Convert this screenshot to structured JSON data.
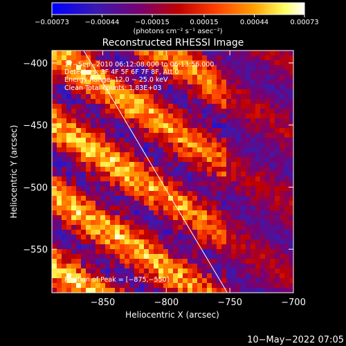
{
  "chart_data": {
    "type": "heatmap",
    "title": "Reconstructed RHESSI Image",
    "xlabel": "Heliocentric X (arcsec)",
    "ylabel": "Heliocentric Y (arcsec)",
    "xlim": [
      -890,
      -700
    ],
    "ylim": [
      -585,
      -390
    ],
    "xticks": [
      -850,
      -800,
      -750,
      -700
    ],
    "yticks": [
      -400,
      -450,
      -500,
      -550
    ],
    "xtick_labels": [
      "−850",
      "−800",
      "−750",
      "−700"
    ],
    "ytick_labels": [
      "−400",
      "−450",
      "−500",
      "−550"
    ],
    "colorbar": {
      "range": [
        -0.00073,
        0.00073
      ],
      "ticks": [
        -0.00073,
        -0.00044,
        -0.00015,
        0.00015,
        0.00044,
        0.00073
      ],
      "tick_labels": [
        "−0.00073",
        "−0.00044",
        "−0.00015",
        "0.00015",
        "0.00044",
        "0.00073"
      ],
      "units": "(photons cm⁻² s⁻¹ asec⁻²)",
      "colormap": [
        "#0000ff",
        "#4a1aa0",
        "#8a0060",
        "#c00000",
        "#ff4000",
        "#ffa000",
        "#ffff80",
        "#ffffff"
      ]
    },
    "annotations": {
      "time": "17−Sep−2010 06:12:08.000 to 06:13:56.000",
      "detectors": "Detectors: 3F 4F 5F 6F 7F 8F, Att 0",
      "energy": "Energy Range: 12.0 − 25.0 keV",
      "clean": "Clean     Total counts: 1.83E+03",
      "peak": "Position of Peak = [−875,−550]"
    },
    "limb_line": {
      "x": [
        -865,
        -752
      ],
      "y": [
        -390,
        -585
      ]
    },
    "pattern": {
      "description_of_fringes": "diagonal bright/dark stripes",
      "peak": [
        -875,
        -550
      ]
    }
  },
  "footer": {
    "date": "10−May−2022 07:05"
  }
}
